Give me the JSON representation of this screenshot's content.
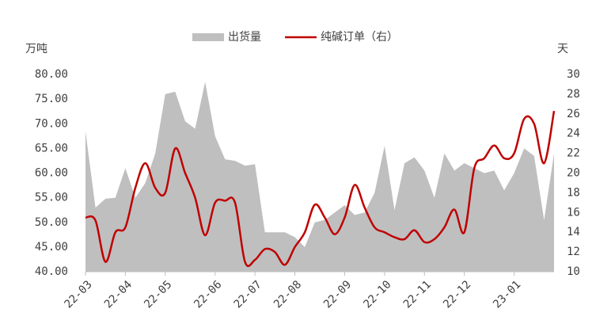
{
  "chart_data": {
    "type": "area-line",
    "y_label": "万吨",
    "y2_label": "天",
    "categories": [
      "22-03",
      null,
      null,
      null,
      "22-04",
      null,
      null,
      null,
      "22-05",
      null,
      null,
      null,
      null,
      "22-06",
      null,
      null,
      null,
      "22-07",
      null,
      null,
      null,
      "22-08",
      null,
      null,
      null,
      null,
      "22-09",
      null,
      null,
      null,
      "22-10",
      null,
      null,
      null,
      "22-11",
      null,
      null,
      null,
      "22-12",
      null,
      null,
      null,
      null,
      "23-01",
      null,
      null,
      null,
      null
    ],
    "series": [
      {
        "name": "出货量",
        "kind": "area",
        "color": "#bfbfbf",
        "axis": "y",
        "values": [
          68.5,
          53,
          54.8,
          55,
          61,
          55,
          58,
          64,
          76,
          76.5,
          70.5,
          69,
          78.5,
          67.5,
          62.8,
          62.5,
          61.5,
          61.8,
          48,
          48,
          48,
          47,
          45,
          50,
          50.5,
          52,
          53.5,
          51.5,
          52,
          56,
          65.5,
          52.5,
          62,
          63.2,
          60.5,
          55,
          64,
          60.5,
          62,
          61,
          60,
          60.5,
          56.5,
          60,
          65,
          63.5,
          50.5,
          64
        ]
      },
      {
        "name": "纯碱订单（右）",
        "kind": "line",
        "color": "#c00000",
        "axis": "y2",
        "values": [
          15.5,
          15.2,
          11,
          14,
          14.5,
          18.5,
          21,
          18.5,
          18,
          22.5,
          20,
          17.5,
          13.7,
          17,
          17.2,
          17,
          11,
          11.2,
          12.3,
          12,
          10.7,
          12.5,
          14,
          16.8,
          15.5,
          13.8,
          15.5,
          18.8,
          16.5,
          14.5,
          14,
          13.5,
          13.3,
          14.2,
          13,
          13.3,
          14.5,
          16.3,
          14,
          20.5,
          21.5,
          22.8,
          21.5,
          22,
          25.5,
          25,
          21,
          26.3
        ]
      }
    ],
    "ylim": [
      40,
      80
    ],
    "yticks": [
      {
        "value": 40,
        "label": "40.00"
      },
      {
        "value": 45,
        "label": "45.00"
      },
      {
        "value": 50,
        "label": "50.00"
      },
      {
        "value": 55,
        "label": "55.00"
      },
      {
        "value": 60,
        "label": "60.00"
      },
      {
        "value": 65,
        "label": "65.00"
      },
      {
        "value": 70,
        "label": "70.00"
      },
      {
        "value": 75,
        "label": "75.00"
      },
      {
        "value": 80,
        "label": "80.00"
      }
    ],
    "y2lim": [
      10,
      30
    ],
    "y2ticks": [
      10,
      12,
      14,
      16,
      18,
      20,
      22,
      24,
      26,
      28,
      30
    ],
    "legend": "top"
  }
}
